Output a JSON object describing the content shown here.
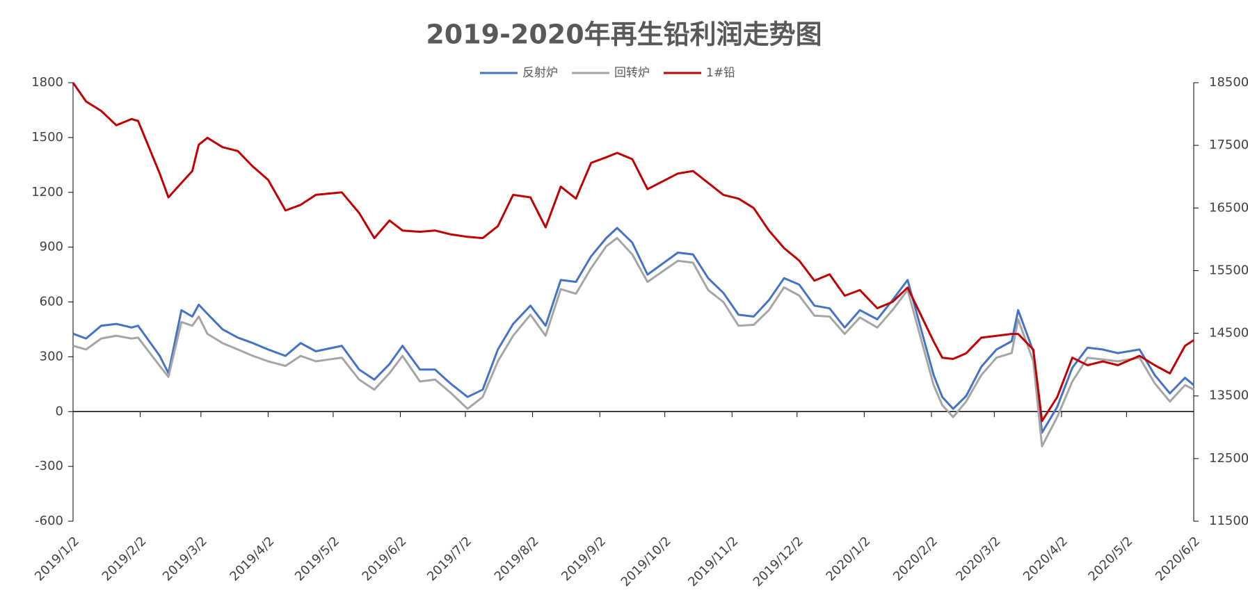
{
  "chart_data": {
    "type": "line",
    "title": "2019-2020年再生铅利润走势图",
    "x": [
      "2019/1/2",
      "2019/1/8",
      "2019/1/15",
      "2019/1/22",
      "2019/1/29",
      "2019/2/1",
      "2019/2/11",
      "2019/2/15",
      "2019/2/21",
      "2019/2/26",
      "2019/3/1",
      "2019/3/5",
      "2019/3/12",
      "2019/3/19",
      "2019/3/26",
      "2019/4/2",
      "2019/4/10",
      "2019/4/17",
      "2019/4/24",
      "2019/5/6",
      "2019/5/14",
      "2019/5/21",
      "2019/5/28",
      "2019/6/3",
      "2019/6/11",
      "2019/6/18",
      "2019/6/25",
      "2019/7/3",
      "2019/7/10",
      "2019/7/17",
      "2019/7/24",
      "2019/8/1",
      "2019/8/8",
      "2019/8/15",
      "2019/8/22",
      "2019/8/29",
      "2019/9/5",
      "2019/9/10",
      "2019/9/17",
      "2019/9/24",
      "2019/10/8",
      "2019/10/15",
      "2019/10/22",
      "2019/10/29",
      "2019/11/5",
      "2019/11/12",
      "2019/11/19",
      "2019/11/26",
      "2019/12/3",
      "2019/12/10",
      "2019/12/17",
      "2019/12/24",
      "2019/12/31",
      "2020/1/8",
      "2020/1/15",
      "2020/1/22",
      "2020/2/3",
      "2020/2/7",
      "2020/2/12",
      "2020/2/18",
      "2020/2/25",
      "2020/3/3",
      "2020/3/10",
      "2020/3/13",
      "2020/3/20",
      "2020/3/24",
      "2020/3/31",
      "2020/4/7",
      "2020/4/14",
      "2020/4/21",
      "2020/4/28",
      "2020/5/8",
      "2020/5/15",
      "2020/5/22",
      "2020/5/29",
      "2020/6/2"
    ],
    "series": [
      {
        "name": "反射炉",
        "color": "#4472c4",
        "values": [
          426,
          400,
          470,
          480,
          460,
          470,
          305,
          210,
          555,
          520,
          585,
          535,
          450,
          405,
          375,
          340,
          305,
          375,
          330,
          360,
          230,
          175,
          260,
          360,
          230,
          230,
          155,
          80,
          120,
          340,
          480,
          580,
          470,
          720,
          710,
          850,
          950,
          1005,
          925,
          750,
          870,
          860,
          730,
          650,
          530,
          520,
          610,
          730,
          695,
          580,
          565,
          460,
          555,
          505,
          610,
          720,
          200,
          80,
          15,
          85,
          245,
          340,
          385,
          555,
          330,
          -115,
          25,
          240,
          350,
          340,
          320,
          340,
          200,
          100,
          185,
          145
        ]
      },
      {
        "name": "回转炉",
        "color": "#a5a5a5",
        "values": [
          360,
          340,
          400,
          415,
          400,
          405,
          250,
          190,
          490,
          470,
          520,
          425,
          375,
          340,
          305,
          275,
          250,
          305,
          275,
          295,
          175,
          120,
          210,
          305,
          165,
          175,
          105,
          15,
          80,
          275,
          415,
          530,
          415,
          670,
          645,
          785,
          905,
          950,
          860,
          710,
          825,
          815,
          665,
          600,
          470,
          475,
          555,
          680,
          635,
          525,
          520,
          425,
          515,
          460,
          555,
          665,
          145,
          35,
          -30,
          55,
          200,
          295,
          320,
          505,
          275,
          -190,
          -30,
          165,
          295,
          285,
          275,
          295,
          155,
          55,
          145,
          120
        ]
      },
      {
        "name": "1#铅",
        "color": "#c00000",
        "axis": "y2",
        "values": [
          18500,
          18200,
          18050,
          17820,
          17920,
          17890,
          17050,
          16670,
          16900,
          17090,
          17510,
          17620,
          17470,
          17410,
          17160,
          16950,
          16460,
          16550,
          16710,
          16750,
          16420,
          16020,
          16300,
          16140,
          16120,
          16140,
          16080,
          16040,
          16020,
          16210,
          16710,
          16670,
          16190,
          16840,
          16650,
          17220,
          17310,
          17380,
          17280,
          16800,
          17050,
          17090,
          16900,
          16710,
          16650,
          16500,
          16140,
          15860,
          15660,
          15340,
          15440,
          15100,
          15190,
          14900,
          15000,
          15230,
          14370,
          14110,
          14090,
          14180,
          14430,
          14460,
          14490,
          14490,
          14240,
          13100,
          13480,
          14110,
          13990,
          14050,
          13990,
          14140,
          13990,
          13860,
          14300,
          14390
        ]
      }
    ],
    "xlim": [
      "2019/1/2",
      "2020/6/2"
    ],
    "xticks": [
      "2019/1/2",
      "2019/2/2",
      "2019/3/2",
      "2019/4/2",
      "2019/5/2",
      "2019/6/2",
      "2019/7/2",
      "2019/8/2",
      "2019/9/2",
      "2019/10/2",
      "2019/11/2",
      "2019/12/2",
      "2020/1/2",
      "2020/2/2",
      "2020/3/2",
      "2020/4/2",
      "2020/5/2",
      "2020/6/2"
    ],
    "ylim": [
      -600,
      1800
    ],
    "yticks": [
      -600,
      -300,
      0,
      300,
      600,
      900,
      1200,
      1500,
      1800
    ],
    "y2lim": [
      11500,
      18500
    ],
    "y2ticks": [
      11500,
      12500,
      13500,
      14500,
      15500,
      16500,
      17500,
      18500
    ],
    "legend": "top"
  }
}
